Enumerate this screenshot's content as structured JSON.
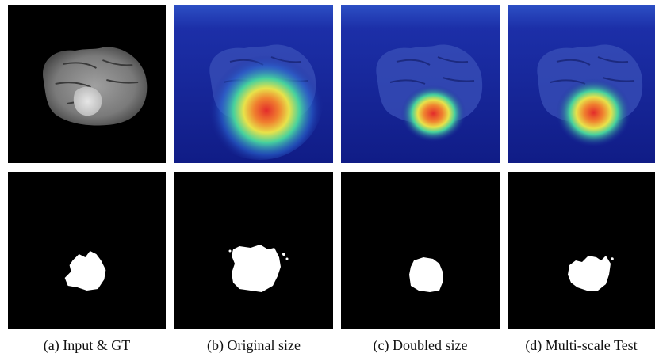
{
  "figure": {
    "captions": [
      "(a) Input & GT",
      "(b) Original size",
      "(c) Doubled size",
      "(d) Multi-scale Test"
    ]
  },
  "colors": {
    "background": "#ffffff",
    "panel_background": "#000000",
    "heatmap_low": "#1a2a9a",
    "heatmap_mid": "#38d0b0",
    "heatmap_high": "#e8322a",
    "mask": "#ffffff"
  }
}
